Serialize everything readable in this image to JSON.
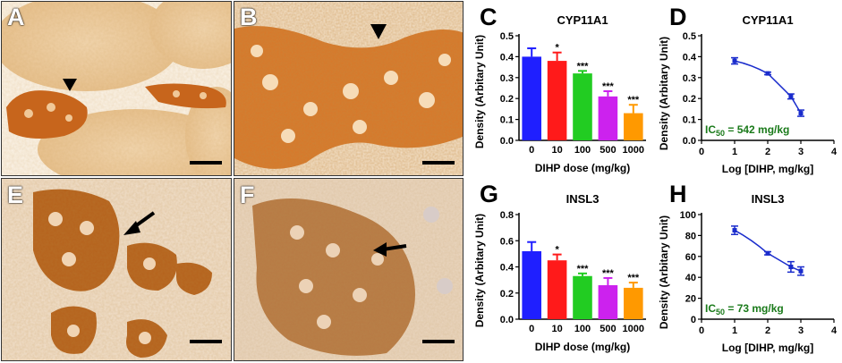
{
  "panels": {
    "A": {
      "label": "A",
      "color": "#e3a060"
    },
    "B": {
      "label": "B",
      "color": "#d8721e"
    },
    "E": {
      "label": "E",
      "color": "#b8621c"
    },
    "F": {
      "label": "F",
      "color": "#b27339"
    }
  },
  "chart_data": [
    {
      "panel_label": "C",
      "type": "bar",
      "title": "CYP11A1",
      "xlabel": "DIHP dose  (mg/kg)",
      "ylabel": "Density (Arbitary  Unit)",
      "categories": [
        "0",
        "10",
        "100",
        "500",
        "1000"
      ],
      "values": [
        0.4,
        0.38,
        0.32,
        0.21,
        0.13
      ],
      "errors": [
        0.04,
        0.04,
        0.012,
        0.025,
        0.04
      ],
      "significance": [
        "",
        "*",
        "***",
        "***",
        "***"
      ],
      "colors": [
        "#1f1fff",
        "#ff1a1a",
        "#22cc22",
        "#cc22ee",
        "#ff9900"
      ],
      "yticks": [
        "0.0",
        "0.1",
        "0.2",
        "0.3",
        "0.4",
        "0.5"
      ],
      "ylim": [
        0,
        0.5
      ]
    },
    {
      "panel_label": "D",
      "type": "line",
      "title": "CYP11A1",
      "xlabel": "Log [DIHP, mg/kg]",
      "ylabel": "Density (Arbitary  Unit)",
      "x": [
        1,
        2,
        2.7,
        3
      ],
      "y": [
        0.38,
        0.32,
        0.21,
        0.13
      ],
      "errors": [
        0.015,
        0.006,
        0.012,
        0.015
      ],
      "xticks": [
        "0",
        "1",
        "2",
        "3",
        "4"
      ],
      "yticks": [
        "0.0",
        "0.1",
        "0.2",
        "0.3",
        "0.4",
        "0.5"
      ],
      "xlim": [
        0,
        4
      ],
      "ylim": [
        0,
        0.5
      ],
      "ic50_prefix": "IC",
      "ic50_sub": "50",
      "ic50_value": " = 542 mg/kg",
      "line_color": "#1a2ccc",
      "ic50_color": "#1a7a1a"
    },
    {
      "panel_label": "G",
      "type": "bar",
      "title": "INSL3",
      "xlabel": "DIHP dose  (mg/kg)",
      "ylabel": "Density (Arbitary  Unit)",
      "categories": [
        "0",
        "10",
        "100",
        "500",
        "1000"
      ],
      "values": [
        0.52,
        0.45,
        0.33,
        0.26,
        0.24
      ],
      "errors": [
        0.07,
        0.045,
        0.02,
        0.055,
        0.04
      ],
      "significance": [
        "",
        "*",
        "***",
        "***",
        "***"
      ],
      "colors": [
        "#1f1fff",
        "#ff1a1a",
        "#22cc22",
        "#cc22ee",
        "#ff9900"
      ],
      "yticks": [
        "0.0",
        "0.2",
        "0.4",
        "0.6",
        "0.8"
      ],
      "ylim": [
        0,
        0.8
      ]
    },
    {
      "panel_label": "H",
      "type": "line",
      "title": "INSL3",
      "xlabel": "Log [DIHP, mg/kg]",
      "ylabel": "Density (Arbitary  Unit)",
      "x": [
        1,
        2,
        2.7,
        3
      ],
      "y": [
        85,
        63,
        50,
        46
      ],
      "errors": [
        4,
        1.5,
        5,
        4
      ],
      "xticks": [
        "0",
        "1",
        "2",
        "3",
        "4"
      ],
      "yticks": [
        "0",
        "20",
        "40",
        "60",
        "80",
        "100"
      ],
      "xlim": [
        0,
        4
      ],
      "ylim": [
        0,
        100
      ],
      "ic50_prefix": "IC",
      "ic50_sub": "50",
      "ic50_value": " = 73 mg/kg",
      "line_color": "#1a2ccc",
      "ic50_color": "#1a7a1a"
    }
  ]
}
